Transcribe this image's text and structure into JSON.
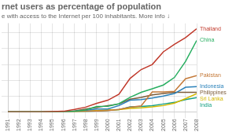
{
  "chart_data": {
    "type": "line",
    "title": "rnet users as percentage of population",
    "subtitle": "e with access to the Internet per 100 inhabitants. More info ↓",
    "x": [
      1991,
      1992,
      1993,
      1994,
      1995,
      1996,
      1997,
      1998,
      1999,
      2000,
      2001,
      2002,
      2003,
      2004,
      2005,
      2006,
      2007,
      2008
    ],
    "series": [
      {
        "name": "Thailand",
        "color": "#c0392b",
        "values": [
          0.0,
          0.0,
          0.0,
          0.0,
          0.1,
          0.2,
          0.8,
          1.5,
          2.7,
          3.7,
          5.6,
          10.6,
          13.4,
          15.0,
          19.0,
          21.4,
          23.5,
          26.3
        ]
      },
      {
        "name": "China",
        "color": "#27ae60",
        "values": [
          0.0,
          0.0,
          0.0,
          0.0,
          0.0,
          0.0,
          0.2,
          0.6,
          1.7,
          1.8,
          2.6,
          4.6,
          6.2,
          7.3,
          8.5,
          10.9,
          16.0,
          22.6
        ]
      },
      {
        "name": "Pakistan",
        "color": "#c47a3a",
        "values": [
          0.0,
          0.0,
          0.0,
          0.0,
          0.0,
          0.0,
          0.1,
          0.2,
          0.3,
          0.4,
          0.8,
          1.5,
          1.9,
          6.3,
          6.3,
          6.5,
          10.5,
          11.5
        ]
      },
      {
        "name": "Indonesia",
        "color": "#2980b9",
        "values": [
          0.0,
          0.0,
          0.0,
          0.0,
          0.0,
          0.0,
          0.2,
          0.5,
          0.9,
          0.9,
          2.0,
          3.7,
          3.9,
          4.4,
          5.0,
          5.8,
          7.8,
          8.0
        ]
      },
      {
        "name": "Philippines",
        "color": "#7c5c3a",
        "values": [
          0.0,
          0.0,
          0.0,
          0.0,
          0.0,
          0.1,
          0.3,
          0.9,
          1.4,
          2.0,
          2.5,
          4.0,
          4.6,
          5.4,
          5.8,
          6.2,
          6.2,
          6.2
        ]
      },
      {
        "name": "Sri Lanka",
        "color": "#d4b800",
        "values": [
          0.0,
          0.0,
          0.0,
          0.0,
          0.0,
          0.0,
          0.1,
          0.2,
          0.4,
          0.6,
          0.7,
          1.1,
          1.3,
          1.6,
          2.0,
          2.8,
          4.2,
          5.8
        ]
      },
      {
        "name": "India",
        "color": "#16a085",
        "values": [
          0.0,
          0.0,
          0.0,
          0.0,
          0.0,
          0.0,
          0.1,
          0.1,
          0.3,
          0.5,
          0.7,
          1.6,
          1.7,
          2.0,
          2.5,
          3.0,
          3.9,
          4.5
        ]
      }
    ],
    "xlim": [
      1991,
      2008
    ],
    "xticks": [
      1991,
      1992,
      1993,
      1994,
      1995,
      1996,
      1997,
      1998,
      1999,
      2000,
      2001,
      2002,
      2003,
      2004,
      2005,
      2006,
      2007,
      2008
    ],
    "ylim": [
      0,
      28
    ],
    "yticks": [
      0,
      5,
      10,
      15,
      20,
      25
    ],
    "grid": true,
    "tick_labels": "x"
  }
}
